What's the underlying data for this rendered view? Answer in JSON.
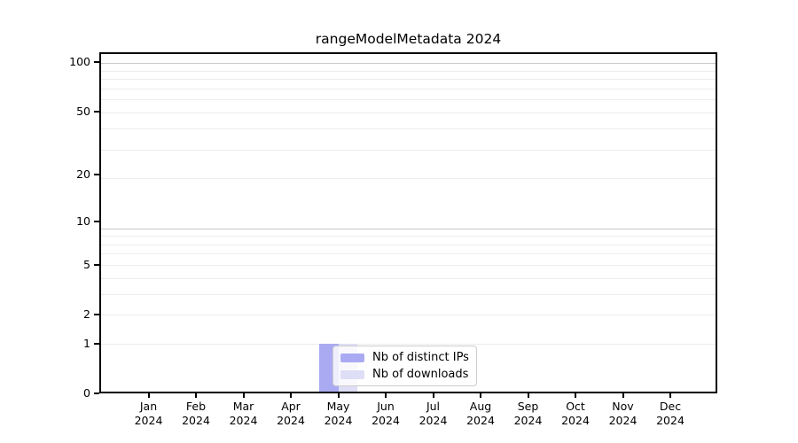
{
  "chart_data": {
    "type": "bar",
    "title": "rangeModelMetadata 2024",
    "categories": [
      "Jan",
      "Feb",
      "Mar",
      "Apr",
      "May",
      "Jun",
      "Jul",
      "Aug",
      "Sep",
      "Oct",
      "Nov",
      "Dec"
    ],
    "x_year_label": "2024",
    "series": [
      {
        "name": "Nb of distinct IPs",
        "color": "#aaaaf2",
        "values": [
          0,
          0,
          0,
          0,
          1,
          0,
          0,
          0,
          0,
          0,
          0,
          0
        ]
      },
      {
        "name": "Nb of downloads",
        "color": "#dedef6",
        "values": [
          0,
          0,
          0,
          0,
          1,
          0,
          0,
          0,
          0,
          0,
          0,
          0
        ]
      }
    ],
    "y_scale": "log10(1+y)",
    "yticks": [
      0,
      1,
      2,
      5,
      10,
      20,
      50,
      100
    ],
    "ylim": [
      0,
      114
    ],
    "xlabel": "",
    "ylabel": "",
    "grid": {
      "orientation": "horizontal",
      "major_lines_at_1plusy": [
        10,
        100
      ],
      "minor_lines_at_1plusy": [
        2,
        3,
        4,
        5,
        6,
        7,
        8,
        9,
        20,
        30,
        40,
        50,
        60,
        70,
        80,
        90
      ],
      "major_color": "#c8c8c8",
      "minor_color": "#ececec"
    },
    "legend": {
      "position": "lower center",
      "background": "rgba(255,255,255,0.8)",
      "border_color": "#cccccc"
    },
    "colors": {
      "axis": "#000000",
      "background": "#ffffff",
      "text": "#000000"
    }
  }
}
